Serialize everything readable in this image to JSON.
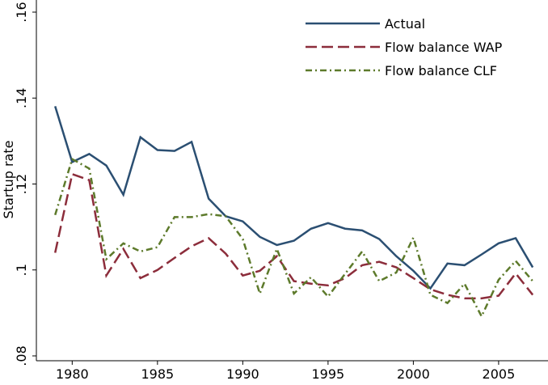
{
  "chart_data": {
    "type": "line",
    "ylabel": "Startup rate",
    "x": [
      1979,
      1980,
      1981,
      1982,
      1983,
      1984,
      1985,
      1986,
      1987,
      1988,
      1989,
      1990,
      1991,
      1992,
      1993,
      1994,
      1995,
      1996,
      1997,
      1998,
      1999,
      2000,
      2001,
      2002,
      2003,
      2004,
      2005,
      2006,
      2007
    ],
    "series": [
      {
        "name": "Actual",
        "color": "#2b4f72",
        "dash": "solid",
        "values": [
          0.1381,
          0.1251,
          0.127,
          0.1243,
          0.1175,
          0.1309,
          0.1279,
          0.1277,
          0.1298,
          0.1166,
          0.1125,
          0.1113,
          0.1077,
          0.1058,
          0.1068,
          0.1096,
          0.1109,
          0.1096,
          0.1092,
          0.1072,
          0.1032,
          0.0998,
          0.0957,
          0.1015,
          0.1011,
          0.1036,
          0.1062,
          0.1074,
          0.1006
        ]
      },
      {
        "name": "Flow balance WAP",
        "color": "#8c2d3b",
        "dash": "dashed",
        "values": [
          0.104,
          0.1223,
          0.1209,
          0.0987,
          0.1049,
          0.0981,
          0.1,
          0.1028,
          0.1055,
          0.1074,
          0.1038,
          0.0987,
          0.0998,
          0.1032,
          0.0974,
          0.0968,
          0.0964,
          0.0981,
          0.1011,
          0.1019,
          0.1006,
          0.0981,
          0.0955,
          0.0942,
          0.0934,
          0.0934,
          0.094,
          0.0992,
          0.0942
        ]
      },
      {
        "name": "Flow balance CLF",
        "color": "#5d7a2b",
        "dash": "dashdot",
        "values": [
          0.1128,
          0.1258,
          0.1236,
          0.1025,
          0.1062,
          0.1043,
          0.1053,
          0.1123,
          0.1123,
          0.113,
          0.1125,
          0.1072,
          0.0945,
          0.1049,
          0.0945,
          0.0983,
          0.0938,
          0.0991,
          0.1043,
          0.0974,
          0.0994,
          0.1075,
          0.0942,
          0.0923,
          0.0968,
          0.0892,
          0.0977,
          0.1021,
          0.0974
        ]
      }
    ],
    "xlim": [
      1977.9,
      2007.8
    ],
    "xticks": [
      1980,
      1985,
      1990,
      1995,
      2000,
      2005
    ],
    "ylim": [
      0.08,
      0.16
    ],
    "yticks": [
      {
        "value": 0.08,
        "label": ".08"
      },
      {
        "value": 0.1,
        "label": ".1"
      },
      {
        "value": 0.12,
        "label": ".12"
      },
      {
        "value": 0.14,
        "label": ".14"
      },
      {
        "value": 0.16,
        "label": ".16"
      }
    ],
    "legend": "top-right"
  }
}
